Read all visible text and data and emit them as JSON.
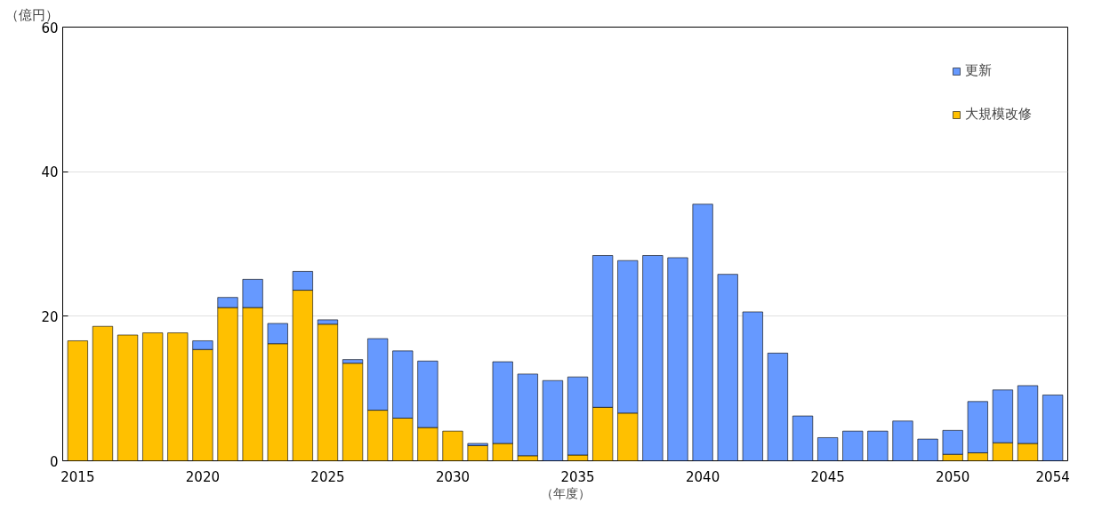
{
  "chart_data": {
    "type": "bar",
    "stacked": true,
    "ylabel": "（億円）",
    "xlabel": "（年度）",
    "x": [
      2015,
      2016,
      2017,
      2018,
      2019,
      2020,
      2021,
      2022,
      2023,
      2024,
      2025,
      2026,
      2027,
      2028,
      2029,
      2030,
      2031,
      2032,
      2033,
      2034,
      2035,
      2036,
      2037,
      2038,
      2039,
      2040,
      2041,
      2042,
      2043,
      2044,
      2045,
      2046,
      2047,
      2048,
      2049,
      2050,
      2051,
      2052,
      2053,
      2054
    ],
    "series": [
      {
        "name": "大規模改修",
        "color": "#ffc000",
        "values": [
          16.6,
          18.6,
          17.4,
          17.7,
          17.7,
          15.4,
          21.2,
          21.2,
          16.2,
          23.6,
          18.9,
          13.5,
          7.0,
          5.9,
          4.6,
          4.1,
          2.1,
          2.4,
          0.7,
          null,
          0.8,
          7.4,
          6.6,
          null,
          null,
          0,
          0,
          0,
          0,
          0,
          0,
          0,
          0,
          0,
          0,
          0.9,
          1.1,
          2.5,
          2.4,
          0
        ]
      },
      {
        "name": "更新",
        "color": "#6699ff",
        "values": [
          0,
          0,
          0,
          0,
          0,
          1.2,
          1.4,
          3.9,
          2.8,
          2.6,
          0.6,
          0.5,
          9.9,
          9.3,
          9.2,
          0,
          0.3,
          11.3,
          11.3,
          11.1,
          10.8,
          21.0,
          21.1,
          28.4,
          28.1,
          35.5,
          25.8,
          20.6,
          14.9,
          6.2,
          3.2,
          4.1,
          4.1,
          5.5,
          3.0,
          3.3,
          7.1,
          7.3,
          8.0,
          9.1
        ]
      }
    ],
    "xlim": [
      2014.4,
      2054.6
    ],
    "xticks": [
      2015,
      2020,
      2025,
      2030,
      2035,
      2040,
      2045,
      2050,
      2054
    ],
    "ylim": [
      0,
      60
    ],
    "yticks": [
      0,
      20,
      40,
      60
    ],
    "grid": "y",
    "legend": "top right"
  }
}
